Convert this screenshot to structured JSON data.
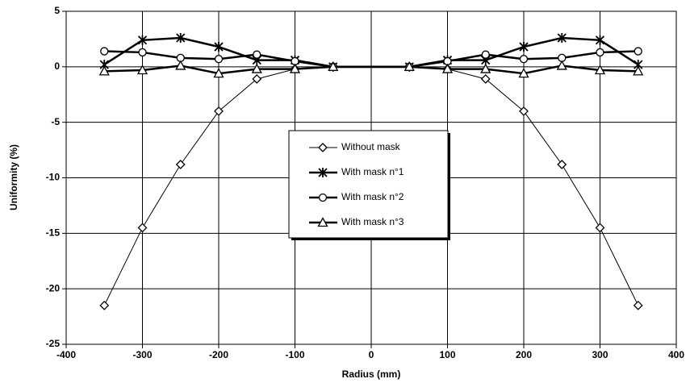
{
  "chart_data": {
    "type": "line",
    "x_label": "Radius (mm)",
    "y_label": "Uniformity (%)",
    "x": [
      -350,
      -300,
      -250,
      -200,
      -150,
      -100,
      -50,
      50,
      100,
      150,
      200,
      250,
      300,
      350
    ],
    "series": [
      {
        "name": "Without mask",
        "color": "#000000",
        "marker": "diamond",
        "line_width": 1,
        "values": [
          -21.5,
          -14.5,
          -8.8,
          -4,
          -1.1,
          -0.2,
          0,
          0,
          -0.2,
          -1.1,
          -4,
          -8.8,
          -14.5,
          -21.5
        ]
      },
      {
        "name": "With mask n°1",
        "color": "#000000",
        "marker": "star",
        "line_width": 2.5,
        "values": [
          0.2,
          2.4,
          2.6,
          1.8,
          0.6,
          0.6,
          0,
          0,
          0.6,
          0.6,
          1.8,
          2.6,
          2.4,
          0.2
        ]
      },
      {
        "name": "With mask n°2",
        "color": "#000000",
        "marker": "circle",
        "line_width": 2.5,
        "values": [
          1.4,
          1.3,
          0.8,
          0.7,
          1.1,
          0.5,
          0,
          0,
          0.5,
          1.1,
          0.7,
          0.8,
          1.3,
          1.4
        ]
      },
      {
        "name": "With mask n°3",
        "color": "#000000",
        "marker": "triangle",
        "line_width": 2.5,
        "values": [
          -0.4,
          -0.3,
          0.1,
          -0.6,
          -0.2,
          -0.2,
          0,
          0,
          -0.2,
          -0.2,
          -0.6,
          0.1,
          -0.3,
          -0.4
        ]
      }
    ],
    "xlim": [
      -400,
      400
    ],
    "xticks": [
      -400,
      -300,
      -200,
      -100,
      0,
      100,
      200,
      300,
      400
    ],
    "ylim": [
      -25,
      5
    ],
    "yticks": [
      -25,
      -20,
      -15,
      -10,
      -5,
      0,
      5
    ],
    "grid": true,
    "legend": "center"
  }
}
